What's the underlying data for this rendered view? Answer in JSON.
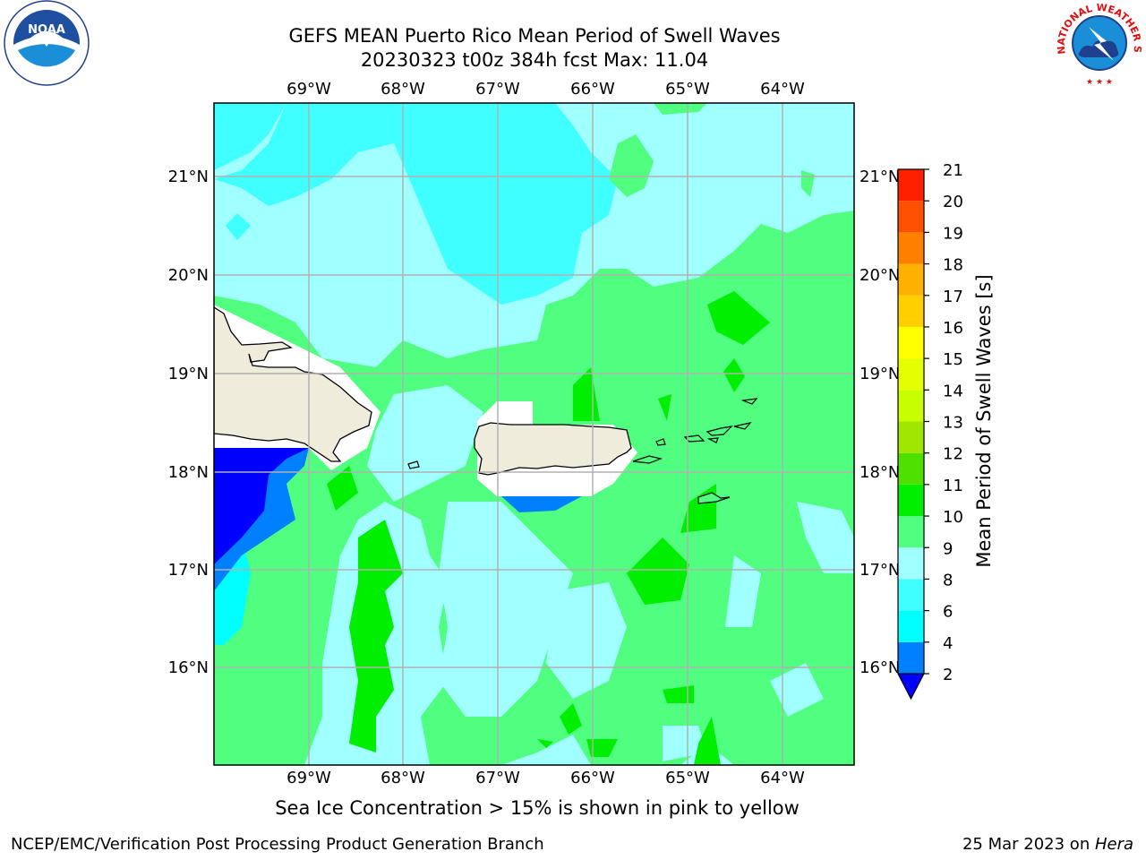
{
  "header": {
    "title_line1": "GEFS MEAN Puerto Rico Mean Period of Swell Waves",
    "title_line2": "20230323 t00z 384h fcst   Max: 11.04"
  },
  "logos": {
    "left": {
      "icon": "noaa-logo-icon",
      "text": "NOAA"
    },
    "right": {
      "icon": "nws-logo-icon",
      "text": "NATIONAL WEATHER SERVICE"
    }
  },
  "map": {
    "lon_labels": [
      "69°W",
      "68°W",
      "67°W",
      "66°W",
      "65°W",
      "64°W"
    ],
    "lat_labels": [
      "21°N",
      "20°N",
      "19°N",
      "18°N",
      "17°N",
      "16°N"
    ],
    "land_color": "#efecdc",
    "grid_color": "#b0b0b0"
  },
  "colorbar": {
    "label": "Mean Period of Swell Waves [s]",
    "ticks": [
      "2",
      "4",
      "6",
      "8",
      "9",
      "10",
      "11",
      "12",
      "13",
      "14",
      "15",
      "16",
      "17",
      "18",
      "19",
      "20",
      "21"
    ],
    "colors": [
      "#0000ff",
      "#0080ff",
      "#00ffff",
      "#40ffff",
      "#a0ffff",
      "#50ff80",
      "#00ef00",
      "#50e000",
      "#a0e600",
      "#c8ff00",
      "#e6ff00",
      "#ffff00",
      "#ffd000",
      "#ffb000",
      "#ff8000",
      "#ff5000",
      "#ff2000",
      "#ff0000"
    ]
  },
  "footer": {
    "caption": "Sea Ice Concentration > 15% is shown in pink to yellow",
    "credit": "NCEP/EMC/Verification Post Processing Product Generation Branch",
    "date": "25 Mar 2023 on ",
    "machine": "Hera"
  }
}
